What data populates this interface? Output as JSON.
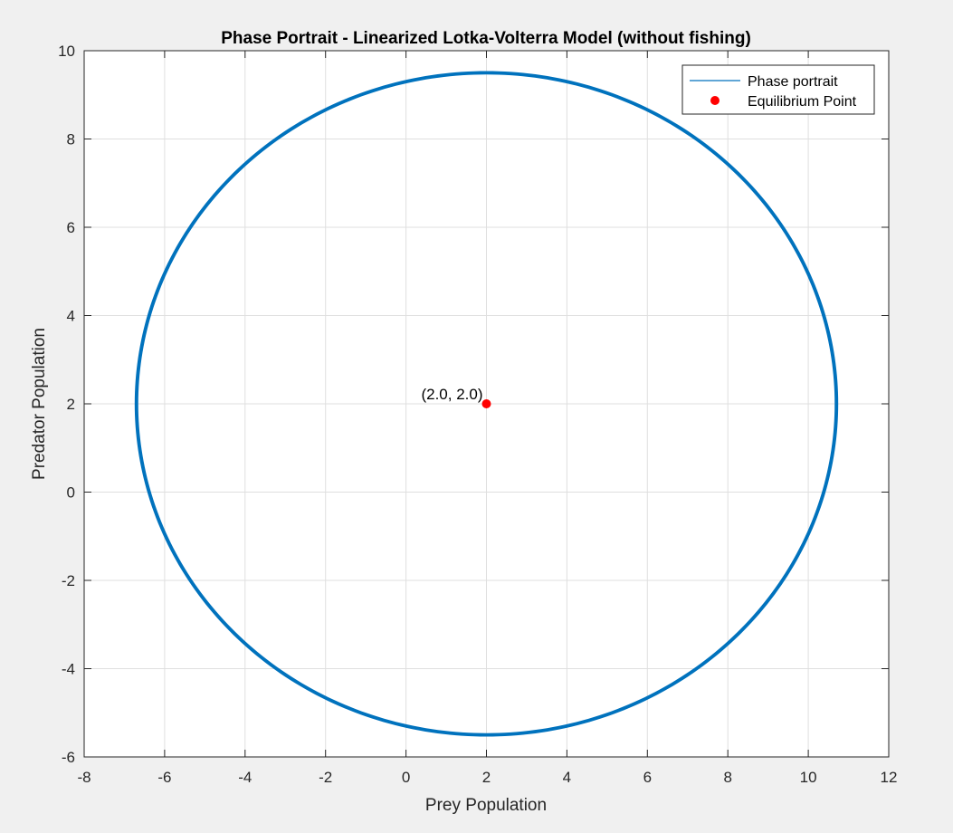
{
  "chart_data": {
    "type": "line",
    "title": "Phase Portrait - Linearized Lotka-Volterra Model (without fishing)",
    "xlabel": "Prey Population",
    "ylabel": "Predator Population",
    "xlim": [
      -8,
      12
    ],
    "ylim": [
      -6,
      10
    ],
    "xticks": [
      -8,
      -6,
      -4,
      -2,
      0,
      2,
      4,
      6,
      8,
      10,
      12
    ],
    "yticks": [
      -6,
      -4,
      -2,
      0,
      2,
      4,
      6,
      8,
      10
    ],
    "grid": true,
    "legend_location": "top-right",
    "series": [
      {
        "name": "Phase portrait",
        "kind": "line",
        "color": "#0072bd",
        "shape": "closed orbit",
        "center": [
          2.0,
          2.0
        ],
        "x_range": [
          -6.7,
          10.7
        ],
        "y_range": [
          -5.5,
          9.5
        ]
      },
      {
        "name": "Equilibrium Point",
        "kind": "marker",
        "color": "#ff0000",
        "x": [
          2.0
        ],
        "y": [
          2.0
        ]
      }
    ],
    "annotations": [
      {
        "text": "(2.0, 2.0)",
        "x": 2.0,
        "y": 2.0
      }
    ]
  }
}
